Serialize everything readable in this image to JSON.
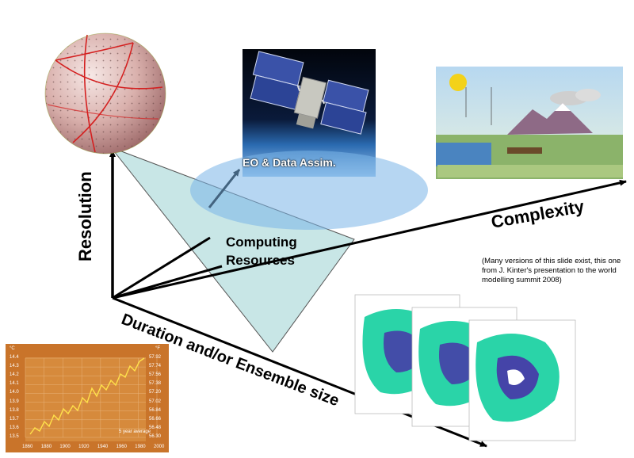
{
  "axes": {
    "resolution": "Resolution",
    "complexity": "Complexity",
    "duration": "Duration and/or Ensemble size"
  },
  "center": {
    "line1": "Computing",
    "line2": "Resources"
  },
  "satellite": {
    "label": "EO & Data Assim."
  },
  "note": {
    "line1": "(Many versions of this slide exist, this one",
    "line2": "from J. Kinter's presentation to the world",
    "line3": "modelling  summit 2008)"
  },
  "temperature_chart": {
    "unit_c": "°C",
    "unit_f": "°F",
    "legend": "5 year average",
    "c_ticks": [
      "14.4",
      "14.3",
      "14.2",
      "14.1",
      "14.0",
      "13.9",
      "13.8",
      "13.7",
      "13.6",
      "13.5"
    ],
    "f_ticks": [
      "57.92",
      "57.74",
      "57.56",
      "57.38",
      "57.20",
      "57.02",
      "56.84",
      "56.66",
      "56.48",
      "56.30"
    ],
    "x_ticks": [
      "1860",
      "1880",
      "1900",
      "1920",
      "1940",
      "1960",
      "1980",
      "2000"
    ]
  },
  "colors": {
    "triangle_fill": "#c8e6e6",
    "triangle_stroke": "#333333",
    "axis": "#000000",
    "globe_base": "#e2b8b8",
    "globe_grid": "#d42020",
    "chart_bg": "#c9742a",
    "chart_line": "#ffe14a",
    "field_fill": "#2ad4a8",
    "field_core": "#4a2aa8"
  },
  "icons": [
    "globe-icosahedral-grid-icon",
    "satellite-icon",
    "climate-system-illustration-icon",
    "temperature-chart-icon",
    "model-field-maps-icon"
  ]
}
